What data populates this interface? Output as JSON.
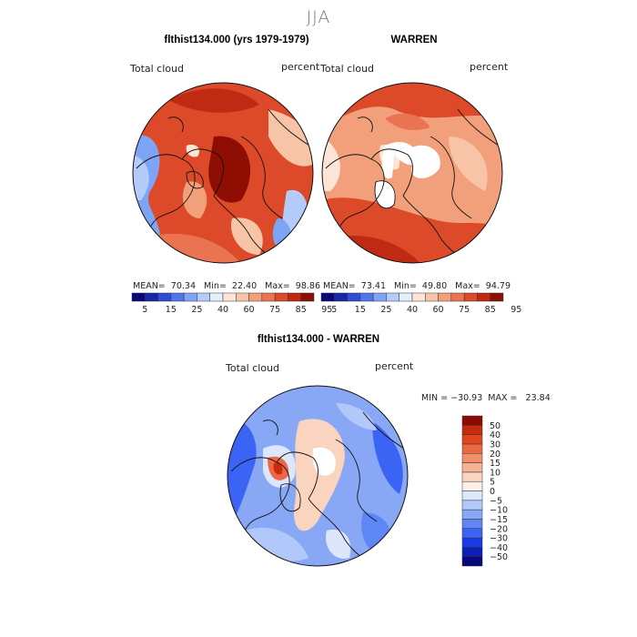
{
  "figure": {
    "title": "JJA"
  },
  "panels": [
    {
      "title": "flthist134.000 (yrs 1979-1979)",
      "variable_label": "Total cloud",
      "units_label": "percent",
      "stats_text": "MEAN=  70.34   Min=  22.40   Max=  98.86"
    },
    {
      "title": "WARREN",
      "variable_label": "Total cloud",
      "units_label": "percent",
      "stats_text": "MEAN=  73.41   Min=  49.80   Max=  94.79"
    },
    {
      "title": "flthist134.000 - WARREN",
      "variable_label": "Total cloud",
      "units_label": "percent",
      "stats_text": "MIN = −30.93  MAX =   23.84"
    }
  ],
  "colorbars": {
    "abs": {
      "colors": [
        "#08087a",
        "#1826a8",
        "#2f4ed6",
        "#4f76ee",
        "#7ea4f6",
        "#b4ccf9",
        "#e4eefc",
        "#fce4d6",
        "#f8c4a8",
        "#f2a07c",
        "#ea7452",
        "#dc4a2a",
        "#c02a12",
        "#8e0e04"
      ],
      "tick_labels": [
        "5",
        "15",
        "25",
        "40",
        "60",
        "75",
        "85",
        "95"
      ]
    },
    "diff": {
      "colors": [
        "#08087a",
        "#0c20b4",
        "#1a3ae8",
        "#3c64f4",
        "#5e86f4",
        "#88a8f6",
        "#b2c8fa",
        "#dce6fc",
        "#fdeee6",
        "#fbd4c0",
        "#f7b294",
        "#f2906c",
        "#ec6844",
        "#e2441e",
        "#c82a0c",
        "#8c0a02"
      ],
      "tick_labels": [
        "−50",
        "−40",
        "−30",
        "−20",
        "−15",
        "−10",
        "−5",
        "0",
        "5",
        "10",
        "15",
        "20",
        "30",
        "40",
        "50"
      ]
    }
  }
}
